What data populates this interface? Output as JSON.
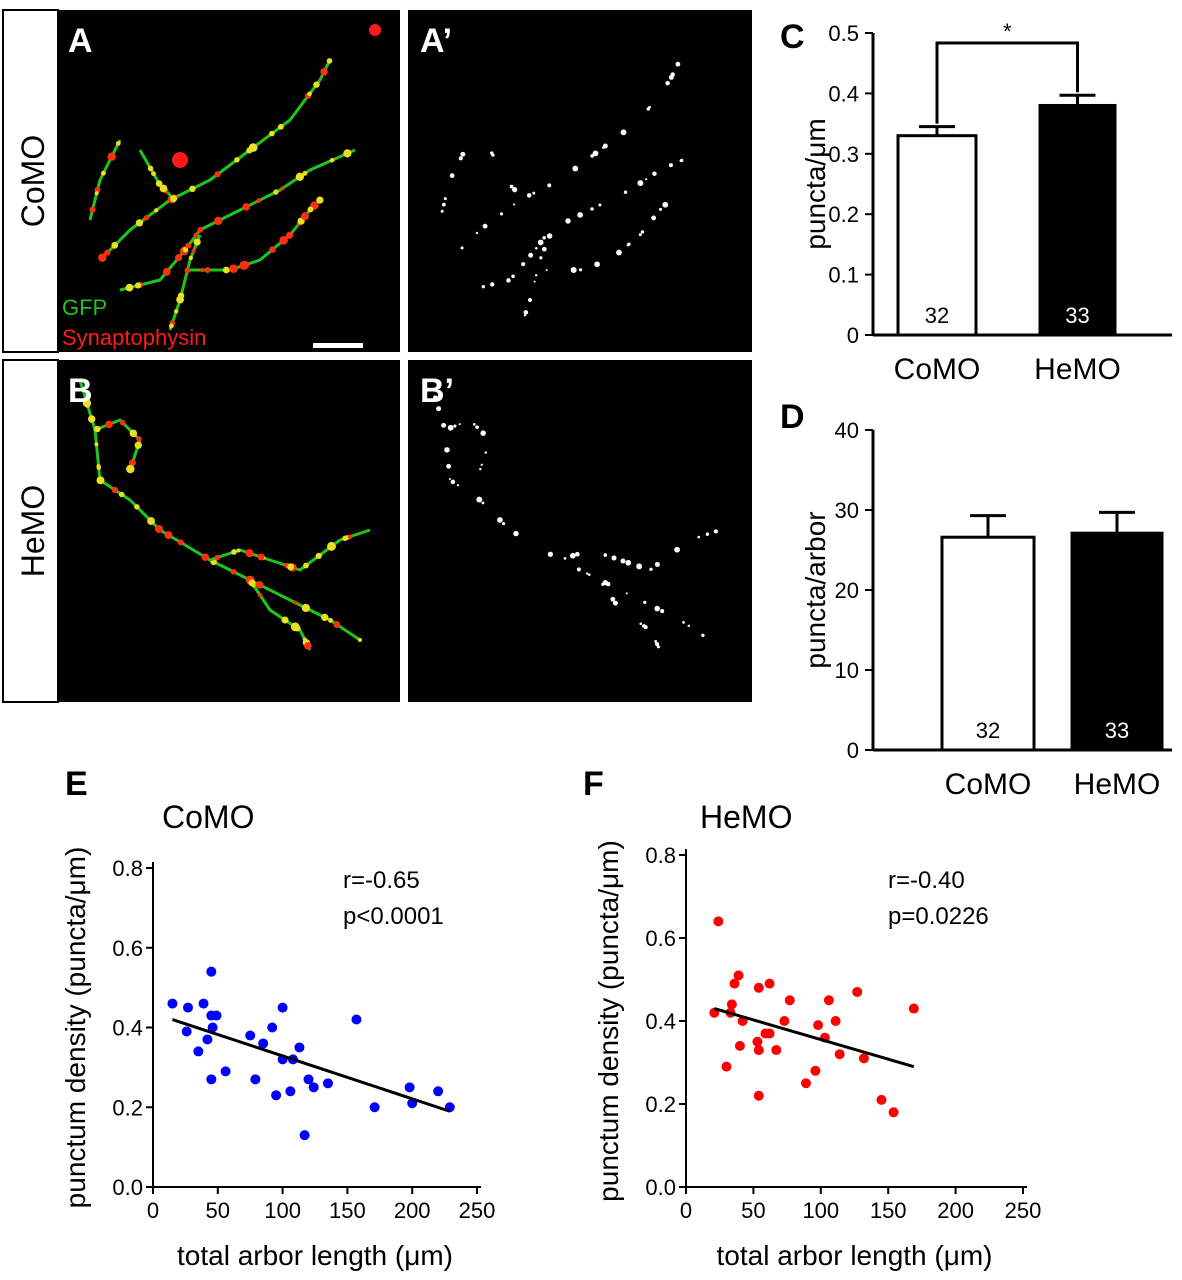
{
  "figure": {
    "row_labels": [
      "CoMO",
      "HeMO"
    ],
    "micrographs": [
      {
        "letter": "A",
        "group": "CoMO",
        "type": "merge"
      },
      {
        "letter": "A’",
        "group": "CoMO",
        "type": "synaptophysin"
      },
      {
        "letter": "B",
        "group": "HeMO",
        "type": "merge"
      },
      {
        "letter": "B’",
        "group": "HeMO",
        "type": "synaptophysin"
      }
    ],
    "legend": {
      "gfp": "GFP",
      "synaptophysin": "Synaptophysin"
    },
    "colors": {
      "gfp": "#1fc41f",
      "synaptophysin": "#ff1a1a",
      "como_points": "#0000ff",
      "hemo_points": "#ff0000"
    }
  },
  "chart_data": [
    {
      "id": "C",
      "letter": "C",
      "type": "bar",
      "categories": [
        "CoMO",
        "HeMO"
      ],
      "values": [
        0.33,
        0.38
      ],
      "errors": [
        0.015,
        0.017
      ],
      "n_labels": [
        "32",
        "33"
      ],
      "bar_colors": [
        "#ffffff",
        "#000000"
      ],
      "ylabel": "puncta/μm",
      "ylim": [
        0,
        0.5
      ],
      "yticks": [
        "0",
        "0.1",
        "0.2",
        "0.3",
        "0.4",
        "0.5"
      ],
      "significance": "*"
    },
    {
      "id": "D",
      "letter": "D",
      "type": "bar",
      "categories": [
        "CoMO",
        "HeMO"
      ],
      "values": [
        26.6,
        27.1
      ],
      "errors": [
        2.7,
        2.6
      ],
      "n_labels": [
        "32",
        "33"
      ],
      "bar_colors": [
        "#ffffff",
        "#000000"
      ],
      "ylabel": "puncta/arbor",
      "ylim": [
        0,
        40
      ],
      "yticks": [
        "0",
        "10",
        "20",
        "30",
        "40"
      ]
    },
    {
      "id": "E",
      "letter": "E",
      "type": "scatter",
      "title": "CoMO",
      "xlabel": "total arbor length (μm)",
      "ylabel": "punctum density (puncta/μm)",
      "xlim": [
        0,
        250
      ],
      "ylim": [
        0,
        0.8
      ],
      "xticks": [
        "0",
        "50",
        "100",
        "150",
        "200",
        "250"
      ],
      "yticks": [
        "0.0",
        "0.2",
        "0.4",
        "0.6",
        "0.8"
      ],
      "stats": [
        "r=-0.65",
        "p<0.0001"
      ],
      "fit": [
        [
          15,
          0.42
        ],
        [
          229,
          0.19
        ]
      ],
      "points": [
        [
          15,
          0.46
        ],
        [
          27,
          0.45
        ],
        [
          39,
          0.46
        ],
        [
          45,
          0.54
        ],
        [
          45,
          0.43
        ],
        [
          49,
          0.43
        ],
        [
          26,
          0.39
        ],
        [
          46,
          0.4
        ],
        [
          42,
          0.37
        ],
        [
          35,
          0.34
        ],
        [
          45,
          0.27
        ],
        [
          56,
          0.29
        ],
        [
          75,
          0.38
        ],
        [
          79,
          0.27
        ],
        [
          85,
          0.36
        ],
        [
          92,
          0.4
        ],
        [
          100,
          0.45
        ],
        [
          100,
          0.32
        ],
        [
          108,
          0.32
        ],
        [
          113,
          0.35
        ],
        [
          95,
          0.23
        ],
        [
          106,
          0.24
        ],
        [
          120,
          0.27
        ],
        [
          124,
          0.25
        ],
        [
          135,
          0.26
        ],
        [
          117,
          0.13
        ],
        [
          157,
          0.42
        ],
        [
          171,
          0.2
        ],
        [
          198,
          0.25
        ],
        [
          200,
          0.21
        ],
        [
          220,
          0.24
        ],
        [
          229,
          0.2
        ]
      ]
    },
    {
      "id": "F",
      "letter": "F",
      "type": "scatter",
      "title": "HeMO",
      "xlabel": "total arbor length (μm)",
      "ylabel": "punctum density (puncta/μm)",
      "xlim": [
        0,
        250
      ],
      "ylim": [
        0,
        0.8
      ],
      "xticks": [
        "0",
        "50",
        "100",
        "150",
        "200",
        "250"
      ],
      "yticks": [
        "0.0",
        "0.2",
        "0.4",
        "0.6",
        "0.8"
      ],
      "stats": [
        "r=-0.40",
        "p=0.0226"
      ],
      "fit": [
        [
          21,
          0.43
        ],
        [
          169,
          0.29
        ]
      ],
      "points": [
        [
          24,
          0.64
        ],
        [
          39,
          0.51
        ],
        [
          36,
          0.49
        ],
        [
          54,
          0.48
        ],
        [
          62,
          0.49
        ],
        [
          77,
          0.45
        ],
        [
          106,
          0.45
        ],
        [
          127,
          0.47
        ],
        [
          169,
          0.43
        ],
        [
          21,
          0.42
        ],
        [
          34,
          0.44
        ],
        [
          33,
          0.42
        ],
        [
          42,
          0.4
        ],
        [
          73,
          0.4
        ],
        [
          98,
          0.39
        ],
        [
          111,
          0.4
        ],
        [
          59,
          0.37
        ],
        [
          62,
          0.37
        ],
        [
          103,
          0.36
        ],
        [
          40,
          0.34
        ],
        [
          53,
          0.35
        ],
        [
          54,
          0.33
        ],
        [
          67,
          0.33
        ],
        [
          114,
          0.32
        ],
        [
          132,
          0.31
        ],
        [
          30,
          0.29
        ],
        [
          96,
          0.28
        ],
        [
          89,
          0.25
        ],
        [
          54,
          0.22
        ],
        [
          145,
          0.21
        ],
        [
          154,
          0.18
        ]
      ]
    }
  ]
}
